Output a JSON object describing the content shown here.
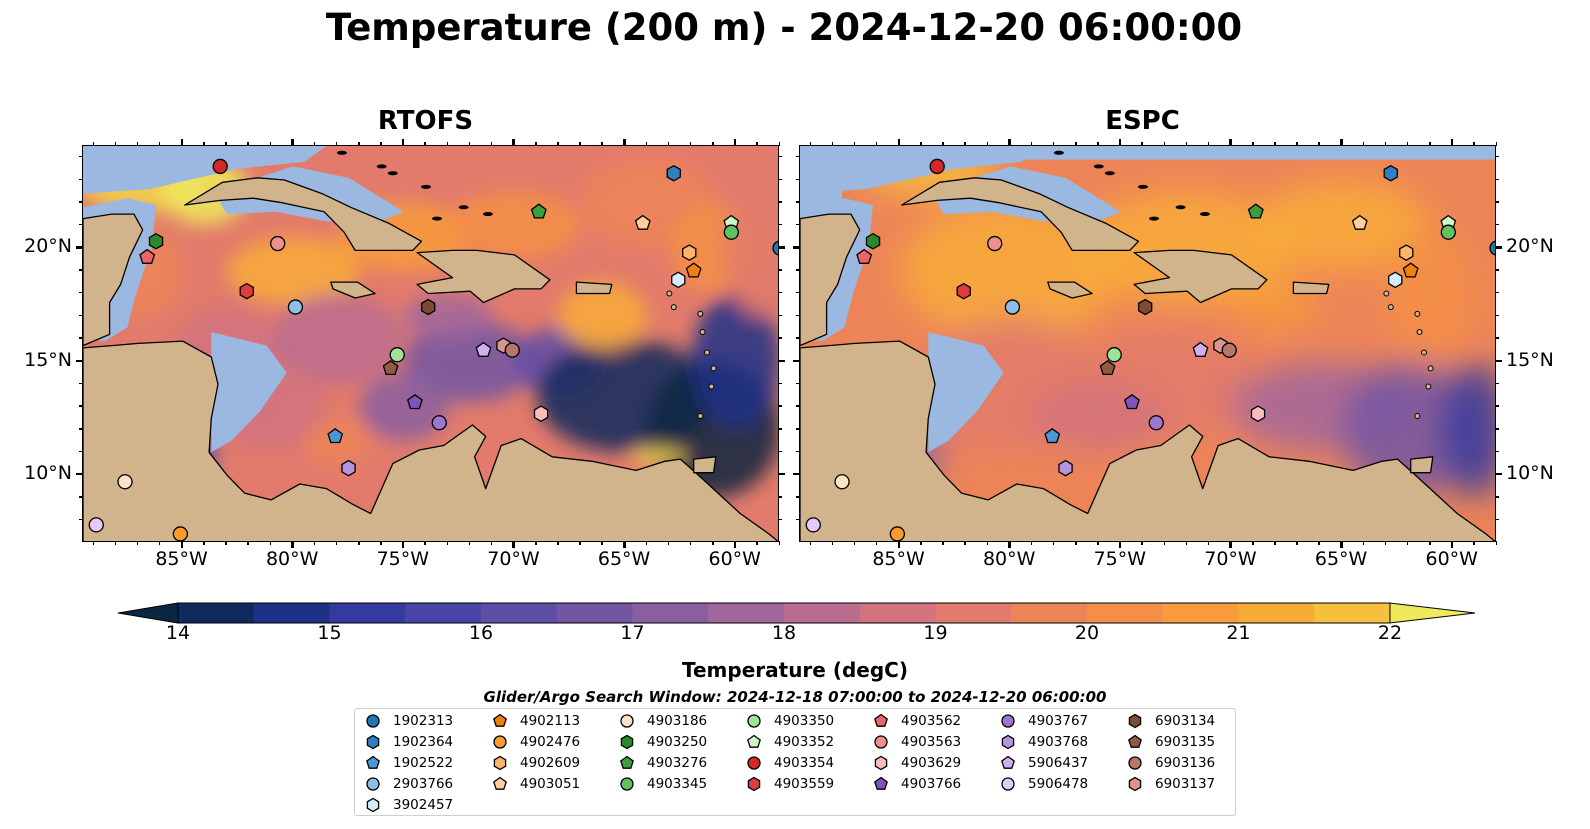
{
  "title": "Temperature (200 m) - 2024-12-20 06:00:00",
  "panels": [
    {
      "title": "RTOFS"
    },
    {
      "title": "ESPC"
    }
  ],
  "map": {
    "lon_range": [
      -89.5,
      -58.0
    ],
    "lat_range": [
      7.0,
      24.5
    ],
    "lat_ticks": [
      "20°N",
      "15°N",
      "10°N"
    ],
    "lat_values": [
      20,
      15,
      10
    ],
    "lon_ticks": [
      "85°W",
      "80°W",
      "75°W",
      "70°W",
      "65°W",
      "60°W"
    ],
    "lon_values": [
      -85,
      -80,
      -75,
      -70,
      -65,
      -60
    ],
    "land_color": "#d2b48c",
    "shelf_color": "#9ab8e0"
  },
  "colorbar": {
    "label": "Temperature (degC)",
    "ticks": [
      "14",
      "15",
      "16",
      "17",
      "18",
      "19",
      "20",
      "21",
      "22"
    ],
    "range": [
      14,
      22
    ],
    "colors": [
      "#0b2741",
      "#102a5e",
      "#1d3187",
      "#343a9e",
      "#4a44a8",
      "#5f4ea6",
      "#7356a3",
      "#8a5fa0",
      "#a2669c",
      "#bb6d8f",
      "#d2737f",
      "#e27b6b",
      "#ed8458",
      "#f58f47",
      "#f89c3b",
      "#f8ac38",
      "#f6bf3d",
      "#f2d44b",
      "#eeea5c"
    ]
  },
  "search_window": "Glider/Argo Search Window: 2024-12-18 07:00:00 to 2024-12-20 06:00:00",
  "legend": [
    {
      "id": "1902313",
      "shape": "circle",
      "color": "#1f77b4"
    },
    {
      "id": "1902364",
      "shape": "hexagon",
      "color": "#2f7fc1"
    },
    {
      "id": "1902522",
      "shape": "pentagon",
      "color": "#4d95d3"
    },
    {
      "id": "2903766",
      "shape": "circle",
      "color": "#8fbfe8"
    },
    {
      "id": "3902457",
      "shape": "hexagon",
      "color": "#d4ecfb"
    },
    {
      "id": "4902113",
      "shape": "pentagon",
      "color": "#f07f0e"
    },
    {
      "id": "4902476",
      "shape": "circle",
      "color": "#fb9a2e"
    },
    {
      "id": "4902609",
      "shape": "hexagon",
      "color": "#fdb56a"
    },
    {
      "id": "4903051",
      "shape": "pentagon",
      "color": "#fecf9c"
    },
    {
      "id": "4903186",
      "shape": "circle",
      "color": "#fde3c8"
    },
    {
      "id": "4903250",
      "shape": "hexagon",
      "color": "#2a8a2a"
    },
    {
      "id": "4903276",
      "shape": "pentagon",
      "color": "#3c9e3c"
    },
    {
      "id": "4903345",
      "shape": "circle",
      "color": "#60c160"
    },
    {
      "id": "4903350",
      "shape": "circle",
      "color": "#9ee39a"
    },
    {
      "id": "4903352",
      "shape": "pentagon",
      "color": "#cff7c8"
    },
    {
      "id": "4903354",
      "shape": "circle",
      "color": "#d62728"
    },
    {
      "id": "4903559",
      "shape": "hexagon",
      "color": "#e03b3e"
    },
    {
      "id": "4903562",
      "shape": "pentagon",
      "color": "#ea6468"
    },
    {
      "id": "4903563",
      "shape": "circle",
      "color": "#f08f8f"
    },
    {
      "id": "4903629",
      "shape": "hexagon",
      "color": "#f7bcbc"
    },
    {
      "id": "4903766",
      "shape": "pentagon",
      "color": "#7f52bd"
    },
    {
      "id": "4903767",
      "shape": "circle",
      "color": "#9e75cf"
    },
    {
      "id": "4903768",
      "shape": "hexagon",
      "color": "#b794e0"
    },
    {
      "id": "5906437",
      "shape": "pentagon",
      "color": "#cfb0ef"
    },
    {
      "id": "5906478",
      "shape": "circle",
      "color": "#e6cbf9"
    },
    {
      "id": "6903134",
      "shape": "hexagon",
      "color": "#7b4b33"
    },
    {
      "id": "6903135",
      "shape": "pentagon",
      "color": "#8f5b45"
    },
    {
      "id": "6903136",
      "shape": "circle",
      "color": "#b7786a"
    },
    {
      "id": "6903137",
      "shape": "hexagon",
      "color": "#d9968c"
    }
  ],
  "markers": [
    {
      "id": "4903354",
      "lon": -83.3,
      "lat": 23.6
    },
    {
      "id": "1902364",
      "lon": -62.8,
      "lat": 23.3
    },
    {
      "id": "4903276",
      "lon": -68.9,
      "lat": 21.6
    },
    {
      "id": "4903051",
      "lon": -64.2,
      "lat": 21.1
    },
    {
      "id": "4903352",
      "lon": -60.2,
      "lat": 21.1
    },
    {
      "id": "4903345",
      "lon": -60.2,
      "lat": 20.7
    },
    {
      "id": "4903250",
      "lon": -86.2,
      "lat": 20.3
    },
    {
      "id": "4903563",
      "lon": -80.7,
      "lat": 20.2
    },
    {
      "id": "1902313",
      "lon": -58.0,
      "lat": 20.0
    },
    {
      "id": "4902609",
      "lon": -62.1,
      "lat": 19.8
    },
    {
      "id": "4903562",
      "lon": -86.6,
      "lat": 19.6
    },
    {
      "id": "4902113",
      "lon": -61.9,
      "lat": 19.0
    },
    {
      "id": "3902457",
      "lon": -62.6,
      "lat": 18.6
    },
    {
      "id": "4903559",
      "lon": -82.1,
      "lat": 18.1
    },
    {
      "id": "2903766",
      "lon": -79.9,
      "lat": 17.4
    },
    {
      "id": "6903134",
      "lon": -73.9,
      "lat": 17.4
    },
    {
      "id": "6903137",
      "lon": -70.5,
      "lat": 15.7
    },
    {
      "id": "6903136",
      "lon": -70.1,
      "lat": 15.5
    },
    {
      "id": "5906437",
      "lon": -71.4,
      "lat": 15.5
    },
    {
      "id": "4903350",
      "lon": -75.3,
      "lat": 15.3
    },
    {
      "id": "6903135",
      "lon": -75.6,
      "lat": 14.7
    },
    {
      "id": "4903766",
      "lon": -74.5,
      "lat": 13.2
    },
    {
      "id": "4903767",
      "lon": -73.4,
      "lat": 12.3
    },
    {
      "id": "4903629",
      "lon": -68.8,
      "lat": 12.7
    },
    {
      "id": "1902522",
      "lon": -78.1,
      "lat": 11.7
    },
    {
      "id": "4903768",
      "lon": -77.5,
      "lat": 10.3
    },
    {
      "id": "4903186",
      "lon": -87.6,
      "lat": 9.7
    },
    {
      "id": "5906478",
      "lon": -88.9,
      "lat": 7.8
    },
    {
      "id": "4902476",
      "lon": -85.1,
      "lat": 7.4
    }
  ]
}
